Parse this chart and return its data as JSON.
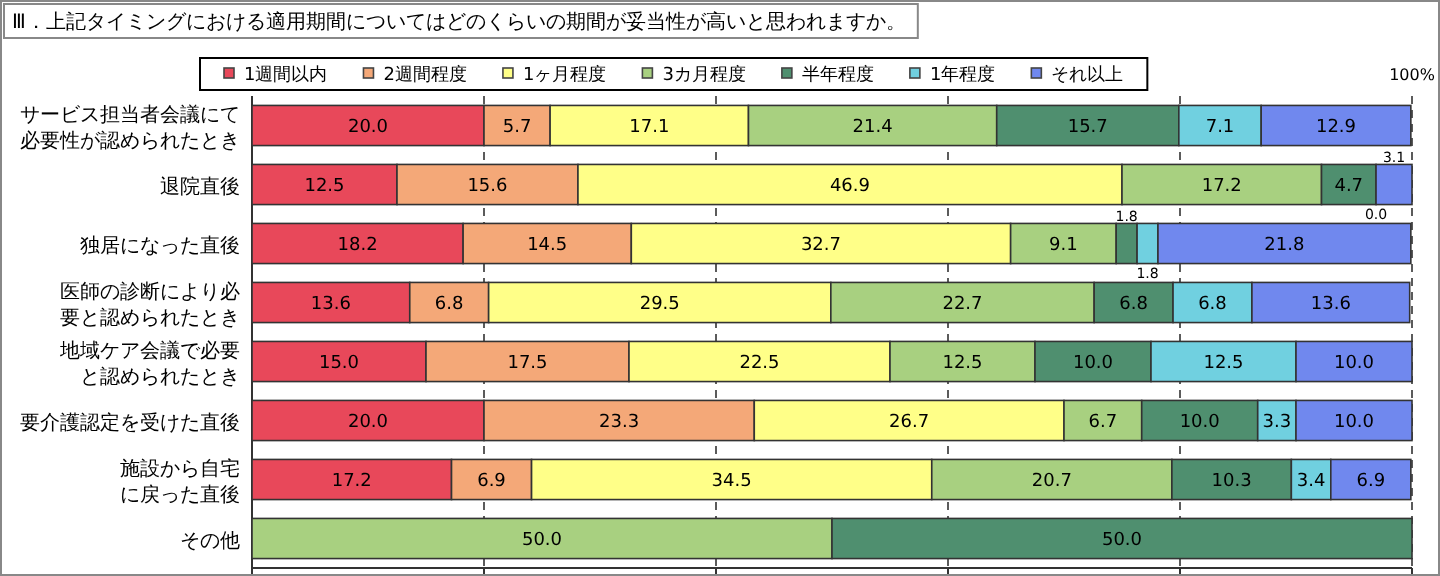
{
  "chart_data": {
    "type": "bar",
    "orientation": "horizontal",
    "stacked": true,
    "title": "Ⅲ．上記タイミングにおける適用期間についてはどのくらいの期間が妥当性が高いと思われますか。",
    "categories": [
      "サービス担当者会議にて必要性が認められたとき",
      "退院直後",
      "独居になった直後",
      "医師の診断により必要と認められたとき",
      "地域ケア会議で必要と認められたとき",
      "要介護認定を受けた直後",
      "施設から自宅に戻った直後",
      "その他"
    ],
    "xlim": [
      0,
      100
    ],
    "xticks": [
      {
        "value": 0,
        "label": null
      },
      {
        "value": 20,
        "label": null
      },
      {
        "value": 40,
        "label": null
      },
      {
        "value": 60,
        "label": null
      },
      {
        "value": 80,
        "label": null
      },
      {
        "value": 100,
        "label": "100%"
      }
    ],
    "grid": "x",
    "legend": "top",
    "series": [
      {
        "name": "1週間以内",
        "color": "#e8485a",
        "values": [
          20.0,
          12.5,
          18.2,
          13.6,
          15.0,
          20.0,
          17.2,
          0
        ],
        "value_labels": [
          "20.0",
          "12.5",
          "18.2",
          "13.6",
          "15.0",
          "20.0",
          "17.2",
          null
        ]
      },
      {
        "name": "2週間程度",
        "color": "#f4a878",
        "values": [
          5.7,
          15.6,
          14.5,
          6.8,
          17.5,
          23.3,
          6.9,
          0
        ],
        "value_labels": [
          "5.7",
          "15.6",
          "14.5",
          "6.8",
          "17.5",
          "23.3",
          "6.9",
          null
        ]
      },
      {
        "name": "1ヶ月程度",
        "color": "#ffff88",
        "values": [
          17.1,
          46.9,
          32.7,
          29.5,
          22.5,
          26.7,
          34.5,
          0
        ],
        "value_labels": [
          "17.1",
          "46.9",
          "32.7",
          "29.5",
          "22.5",
          "26.7",
          "34.5",
          null
        ]
      },
      {
        "name": "3カ月程度",
        "color": "#a8d080",
        "values": [
          21.4,
          17.2,
          9.1,
          22.7,
          12.5,
          6.7,
          20.7,
          50.0
        ],
        "value_labels": [
          "21.4",
          "17.2",
          "9.1",
          "22.7",
          "12.5",
          "6.7",
          "20.7",
          "50.0"
        ]
      },
      {
        "name": "半年程度",
        "color": "#4f8f6f",
        "values": [
          15.7,
          4.7,
          1.8,
          6.8,
          10.0,
          10.0,
          10.3,
          50.0
        ],
        "value_labels": [
          "15.7",
          "4.7",
          "1.8",
          "6.8",
          "10.0",
          "10.0",
          "10.3",
          "50.0"
        ]
      },
      {
        "name": "1年程度",
        "color": "#70d0e0",
        "values": [
          7.1,
          0.0,
          1.8,
          6.8,
          12.5,
          3.3,
          3.4,
          0
        ],
        "value_labels": [
          "7.1",
          "0.0",
          "1.8",
          "6.8",
          "12.5",
          "3.3",
          "3.4",
          null
        ]
      },
      {
        "name": "それ以上",
        "color": "#7088ee",
        "values": [
          12.9,
          3.1,
          21.8,
          13.6,
          10.0,
          10.0,
          6.9,
          0
        ],
        "value_labels": [
          "12.9",
          "3.1",
          "21.8",
          "13.6",
          "10.0",
          "10.0",
          "6.9",
          null
        ]
      }
    ]
  }
}
